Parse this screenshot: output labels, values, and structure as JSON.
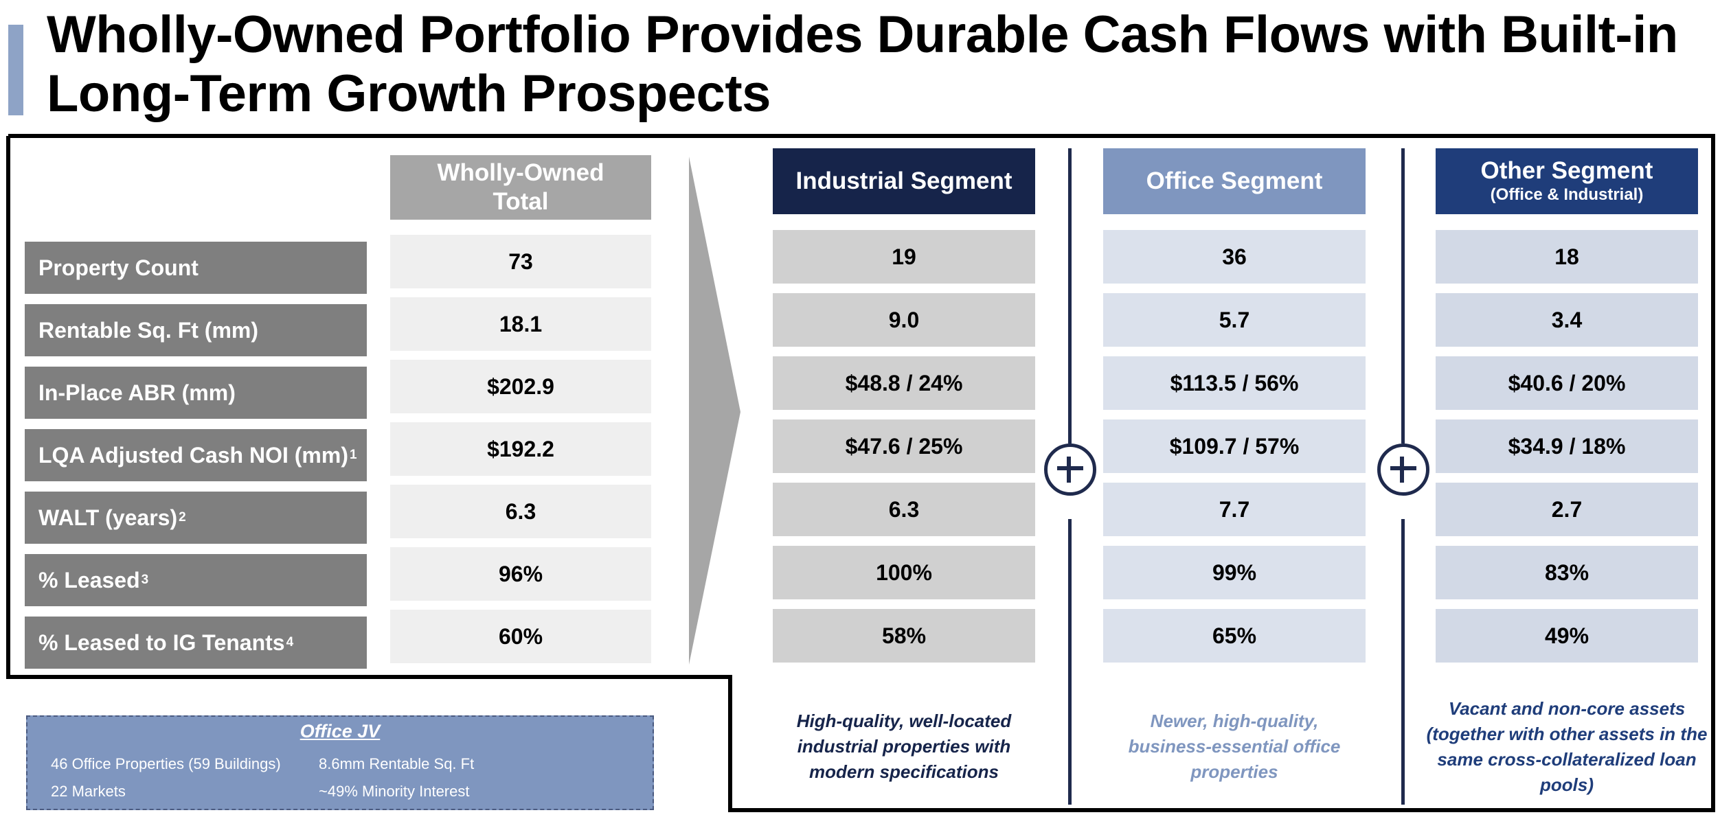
{
  "title": "Wholly-Owned Portfolio Provides Durable Cash Flows with Built-in Long-Term Growth Prospects",
  "colors": {
    "accent_bar": "#8ea3c6",
    "label_gray": "#7f7f7f",
    "total_header": "#a6a6a6",
    "industrial_header": "#16244a",
    "office_header": "#7f96bf",
    "other_header": "#1f3d7a",
    "divider_navy": "#1f2a4d"
  },
  "row_labels": [
    {
      "text": "Property Count",
      "sup": ""
    },
    {
      "text": "Rentable Sq. Ft (mm)",
      "sup": ""
    },
    {
      "text": "In-Place ABR (mm)",
      "sup": ""
    },
    {
      "text": "LQA Adjusted Cash NOI (mm)",
      "sup": "1"
    },
    {
      "text": "WALT (years)",
      "sup": "2"
    },
    {
      "text": "% Leased",
      "sup": "3"
    },
    {
      "text": "% Leased to IG Tenants",
      "sup": "4"
    }
  ],
  "total": {
    "header": "Wholly-Owned Total",
    "values": [
      "73",
      "18.1",
      "$202.9",
      "$192.2",
      "6.3",
      "96%",
      "60%"
    ]
  },
  "industrial": {
    "header": "Industrial Segment",
    "values": [
      "19",
      "9.0",
      "$48.8 / 24%",
      "$47.6 / 25%",
      "6.3",
      "100%",
      "58%"
    ],
    "description": "High-quality, well-located industrial properties with modern specifications"
  },
  "office": {
    "header": "Office Segment",
    "values": [
      "36",
      "5.7",
      "$113.5 / 56%",
      "$109.7 / 57%",
      "7.7",
      "99%",
      "65%"
    ],
    "description": "Newer, high-quality, business-essential office properties"
  },
  "other": {
    "header": "Other Segment",
    "subheader": "(Office & Industrial)",
    "values": [
      "18",
      "3.4",
      "$40.6 / 20%",
      "$34.9 / 18%",
      "2.7",
      "83%",
      "49%"
    ],
    "description": "Vacant and non-core assets (together with other assets in the same cross-collateralized loan pools)"
  },
  "office_jv": {
    "title": "Office JV",
    "items": [
      "46 Office Properties (59 Buildings)",
      "8.6mm Rentable Sq. Ft",
      "22 Markets",
      "~49% Minority Interest"
    ]
  },
  "plus_icons": [
    "plus-circle-icon",
    "plus-circle-icon"
  ]
}
